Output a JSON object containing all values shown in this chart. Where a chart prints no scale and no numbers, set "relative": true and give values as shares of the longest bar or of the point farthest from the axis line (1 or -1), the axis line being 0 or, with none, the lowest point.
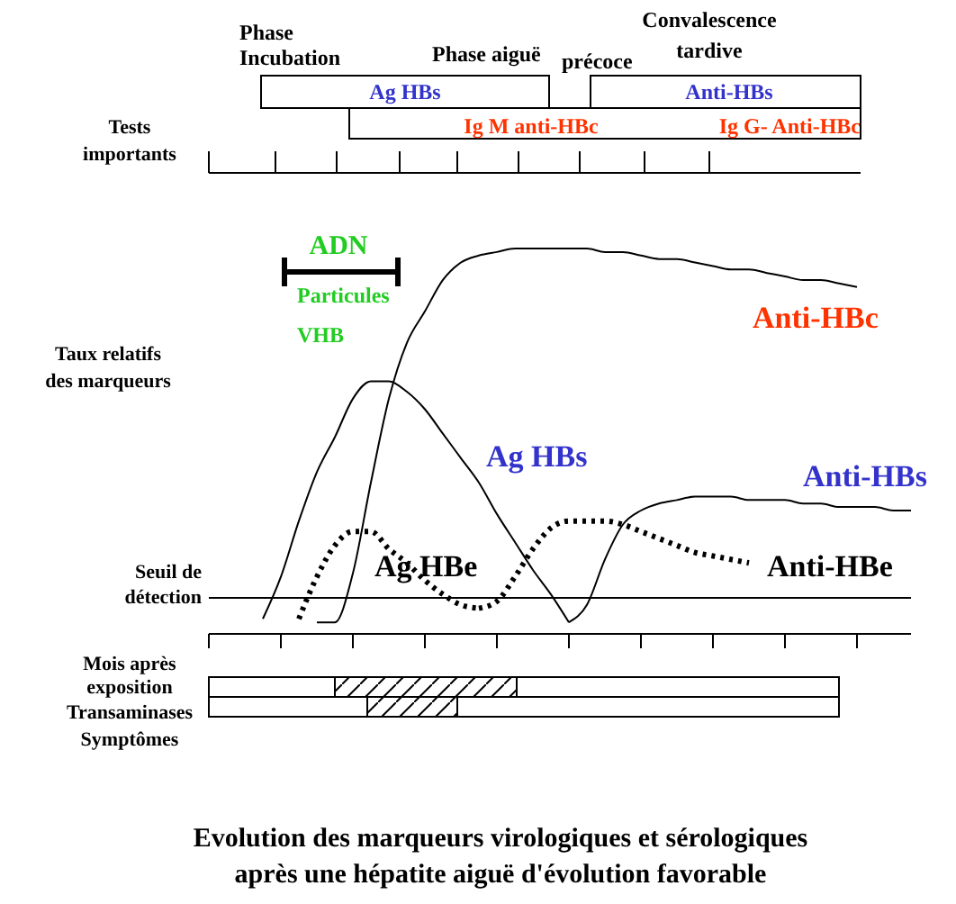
{
  "chart_data": {
    "type": "line",
    "relative": true,
    "title": "Evolution des marqueurs virologiques et sérologiques après une hépatite aiguë d'évolution favorable",
    "xlabel": "Mois après exposition",
    "ylabel": "Taux relatifs des marqueurs",
    "categories": [
      null,
      null,
      null,
      null,
      null,
      null,
      null,
      null,
      null,
      null,
      null,
      null,
      null,
      null,
      null,
      null,
      null,
      null,
      null,
      null,
      null,
      null,
      null,
      null,
      null,
      null,
      null,
      null,
      null,
      null,
      null,
      null,
      null,
      null,
      null,
      null,
      null,
      null,
      null,
      null
    ],
    "series": [
      {
        "name": "Anti-HBc",
        "color": "#000000",
        "values": [
          null,
          null,
          null,
          null,
          null,
          null,
          -0.07,
          -0.07,
          0.07,
          0.33,
          0.57,
          0.73,
          0.82,
          0.91,
          0.96,
          0.98,
          0.99,
          1.0,
          1.0,
          1.0,
          1.0,
          1.0,
          0.99,
          0.99,
          0.98,
          0.97,
          0.97,
          0.96,
          0.95,
          0.94,
          0.94,
          0.93,
          0.92,
          0.91,
          0.91,
          0.9,
          0.89,
          null,
          null,
          null
        ]
      },
      {
        "name": "Ag HBs",
        "color": "#000000",
        "values": [
          null,
          null,
          null,
          -0.06,
          0.06,
          0.22,
          0.36,
          0.46,
          0.57,
          0.62,
          0.62,
          0.59,
          0.54,
          0.47,
          0.4,
          0.33,
          0.24,
          0.16,
          0.08,
          0.01,
          -0.07,
          null,
          null,
          null,
          null,
          null,
          null,
          null,
          null,
          null,
          null,
          null,
          null,
          null,
          null,
          null,
          null,
          null,
          null,
          null
        ]
      },
      {
        "name": "Anti-HBs",
        "color": "#000000",
        "values": [
          null,
          null,
          null,
          null,
          null,
          null,
          null,
          null,
          null,
          null,
          null,
          null,
          null,
          null,
          null,
          null,
          null,
          null,
          null,
          null,
          -0.07,
          -0.02,
          0.11,
          0.21,
          0.25,
          0.27,
          0.28,
          0.29,
          0.29,
          0.29,
          0.28,
          0.28,
          0.28,
          0.27,
          0.27,
          0.26,
          0.26,
          0.26,
          0.25,
          0.25
        ]
      },
      {
        "name": "Ag HBe",
        "color": "#000000",
        "line_style": "dotted",
        "values": [
          null,
          null,
          null,
          null,
          null,
          -0.06,
          0.06,
          0.15,
          0.19,
          0.19,
          0.14,
          0.1,
          0.05,
          0.01,
          -0.02,
          -0.03,
          null,
          null,
          null,
          null,
          null,
          null,
          null,
          null,
          null,
          null,
          null,
          null,
          null,
          null,
          null,
          null,
          null,
          null,
          null,
          null,
          null,
          null,
          null,
          null
        ]
      },
      {
        "name": "Anti-HBe",
        "color": "#000000",
        "line_style": "dotted",
        "values": [
          null,
          null,
          null,
          null,
          null,
          null,
          null,
          null,
          null,
          null,
          null,
          null,
          null,
          null,
          null,
          -0.03,
          -0.01,
          0.06,
          0.14,
          0.2,
          0.22,
          0.22,
          0.22,
          0.21,
          0.19,
          0.17,
          0.15,
          0.13,
          0.12,
          0.11,
          0.1,
          null,
          null,
          null,
          null,
          null,
          null,
          null,
          null,
          null
        ]
      }
    ],
    "ref_lines": [
      {
        "axis": "y",
        "value": 0,
        "label": "Seuil de détection"
      }
    ],
    "annotations": [
      "Phase Incubation",
      "Phase aiguë",
      "précoce",
      "Convalescence tardive",
      "Ag HBs",
      "Anti-HBs",
      "Ig M anti-HBc",
      "Ig G- Anti-HBc",
      "Tests importants",
      "ADN",
      "Particules VHB",
      "Transaminases",
      "Symptômes"
    ]
  }
}
